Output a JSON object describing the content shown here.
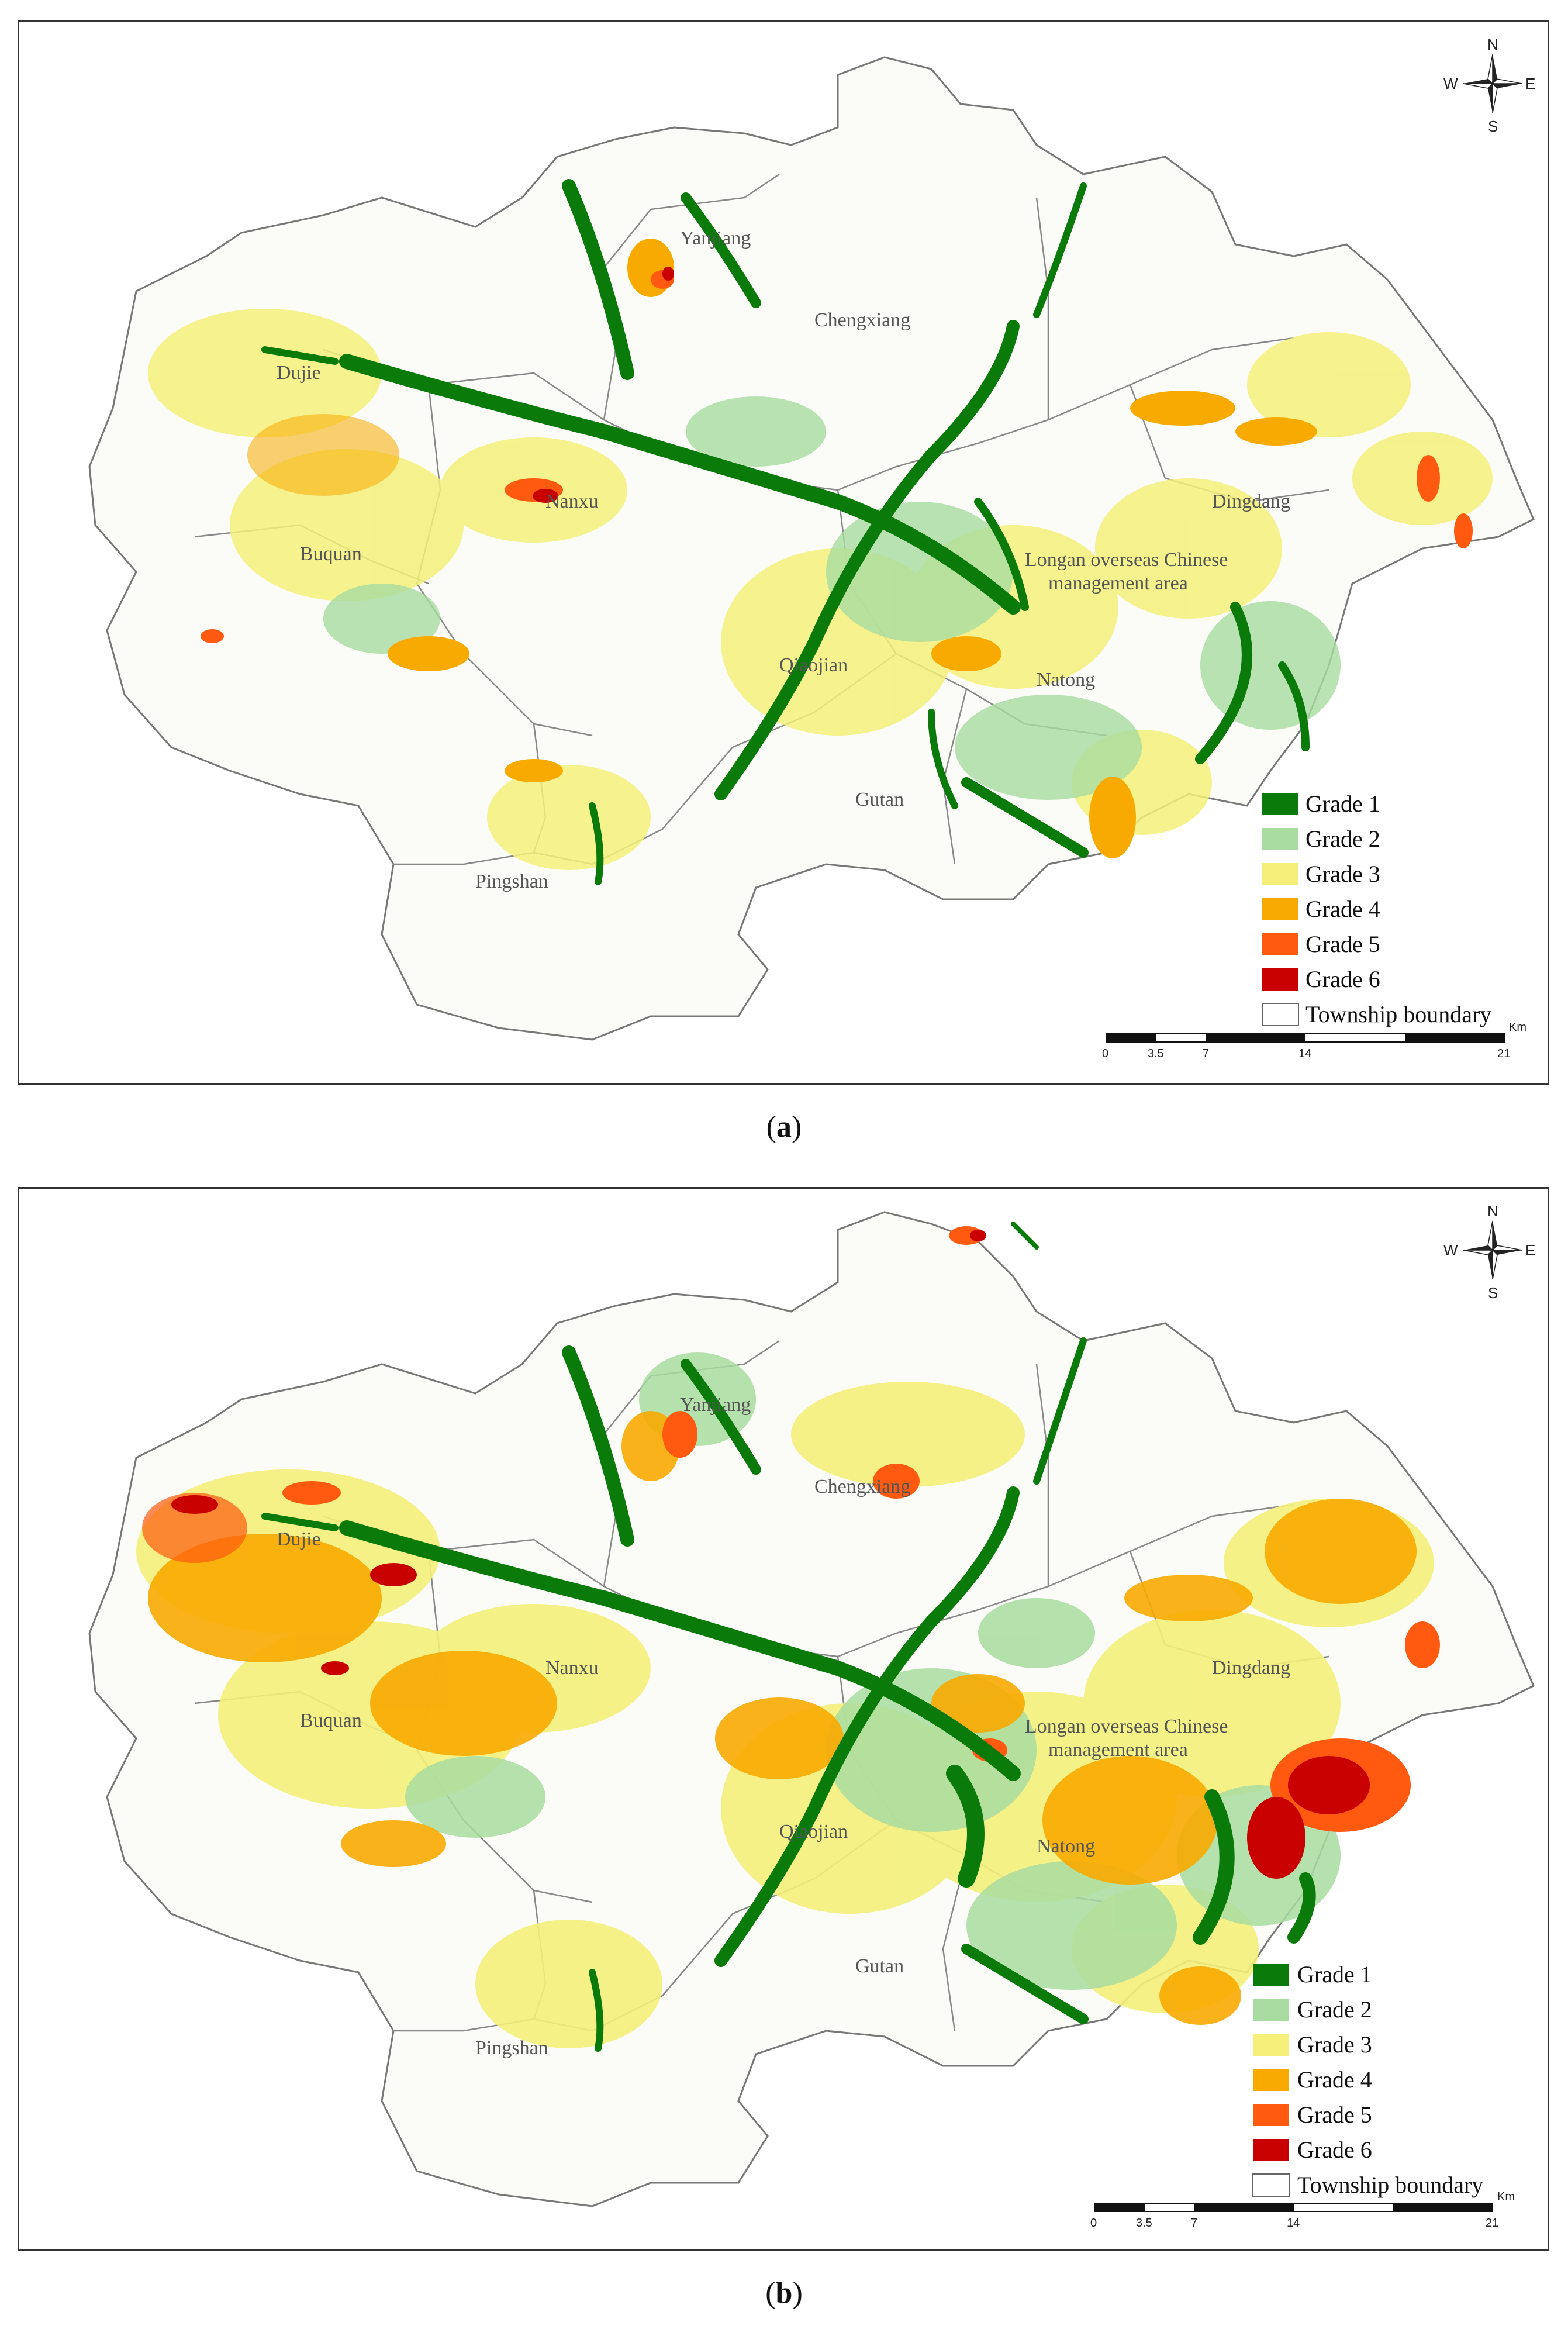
{
  "panels": [
    {
      "id": "a",
      "caption_letter": "a",
      "caption_open": "(",
      "caption_close": ")"
    },
    {
      "id": "b",
      "caption_letter": "b",
      "caption_open": "(",
      "caption_close": ")"
    }
  ],
  "compass": {
    "n": "N",
    "s": "S",
    "e": "E",
    "w": "W"
  },
  "places": {
    "yanjiang": "Yanjiang",
    "chengxiang": "Chengxiang",
    "dujie": "Dujie",
    "nanxu": "Nanxu",
    "buquan": "Buquan",
    "dingdang": "Dingdang",
    "longan_1": "Longan overseas Chinese",
    "longan_2": "management area",
    "qiaojian": "Qiaojian",
    "natong": "Natong",
    "gutan": "Gutan",
    "pingshan": "Pingshan"
  },
  "legend": [
    {
      "label": "Grade 1",
      "color": "#0a7a0a"
    },
    {
      "label": "Grade 2",
      "color": "#a8dca0"
    },
    {
      "label": "Grade 3",
      "color": "#f4f07a"
    },
    {
      "label": "Grade 4",
      "color": "#f8aa00"
    },
    {
      "label": "Grade 5",
      "color": "#ff5a10"
    },
    {
      "label": "Grade 6",
      "color": "#c80000"
    },
    {
      "label": "Township boundary",
      "color": "#ffffff"
    }
  ],
  "scale_bar": {
    "ticks": [
      "0",
      "3.5",
      "7",
      "14",
      "21"
    ],
    "unit": "Km"
  }
}
